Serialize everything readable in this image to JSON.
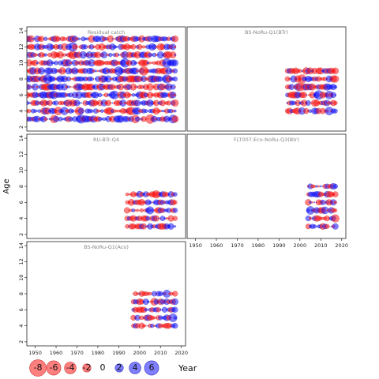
{
  "chart_data": {
    "type": "scatter",
    "subtype": "bubble-residuals",
    "ylabel": "Age",
    "xlabel": "Year",
    "x_ticks": [
      1950,
      1960,
      1970,
      1980,
      1990,
      2000,
      2010,
      2020
    ],
    "y_ticks": [
      2,
      4,
      6,
      8,
      10,
      12,
      14
    ],
    "xlim": [
      1946,
      2022
    ],
    "ylim": [
      1.5,
      14.5
    ],
    "colors": {
      "positive": "#0000ff",
      "negative": "#ff0000",
      "outline_positive": "#3333cc",
      "outline_negative": "#cc3333"
    },
    "opacity": 0.5,
    "legend": {
      "position": "bottom-left",
      "values": [
        -8,
        -6,
        -4,
        -2,
        0,
        2,
        4,
        6
      ],
      "labels": [
        "-8",
        "-6",
        "-4",
        "-2",
        "0",
        "2",
        "4",
        "6"
      ]
    },
    "panels": [
      {
        "title": "Residual catch",
        "years": [
          1946,
          2017
        ],
        "ages": [
          3,
          4,
          5,
          6,
          7,
          8,
          9,
          10,
          11,
          12,
          13
        ],
        "seed": 11,
        "scale": 1.0
      },
      {
        "title": "BS-NoRu-Q1(BTr)",
        "years": [
          1994,
          2017
        ],
        "ages": [
          4,
          5,
          6,
          7,
          8,
          9
        ],
        "seed": 23,
        "scale": 1.0
      },
      {
        "title": "RU-BTr-Q4",
        "years": [
          1994,
          2017
        ],
        "ages": [
          3,
          4,
          5,
          6,
          7
        ],
        "seed": 37,
        "scale": 0.9
      },
      {
        "title": "FLT007:Eco-NoRu-Q3(Btr)",
        "years": [
          2004,
          2017
        ],
        "ages": [
          3,
          4,
          5,
          6,
          7,
          8
        ],
        "seed": 41,
        "scale": 0.9
      },
      {
        "title": "BS-NoRu-Q1(Aco)",
        "years": [
          1997,
          2017
        ],
        "ages": [
          4,
          5,
          6,
          7,
          8
        ],
        "seed": 53,
        "scale": 0.9
      }
    ]
  }
}
